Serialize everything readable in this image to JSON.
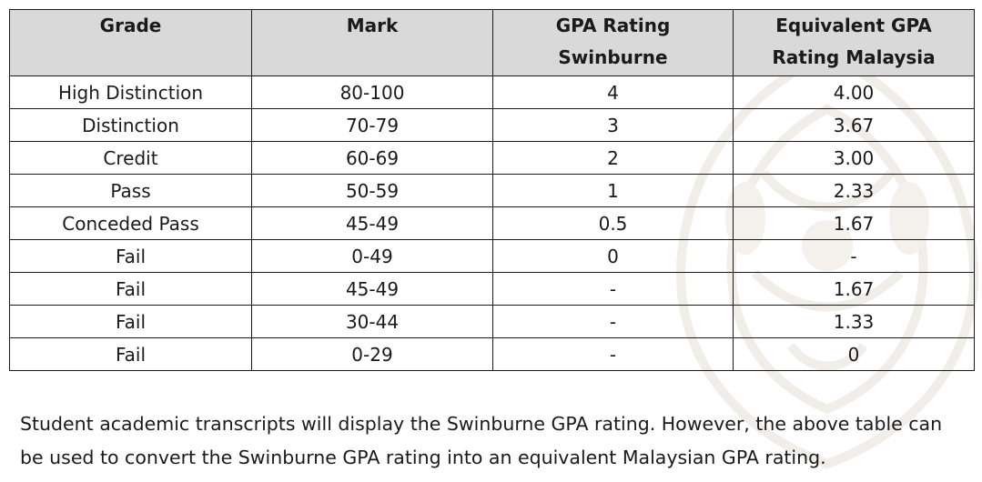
{
  "table": {
    "headers": [
      "Grade",
      "Mark",
      "GPA Rating\nSwinburne",
      "Equivalent GPA\nRating Malaysia"
    ],
    "rows": [
      [
        "High Distinction",
        "80-100",
        "4",
        "4.00"
      ],
      [
        "Distinction",
        "70-79",
        "3",
        "3.67"
      ],
      [
        "Credit",
        "60-69",
        "2",
        "3.00"
      ],
      [
        "Pass",
        "50-59",
        "1",
        "2.33"
      ],
      [
        "Conceded Pass",
        "45-49",
        "0.5",
        "1.67"
      ],
      [
        "Fail",
        "0-49",
        "0",
        "-"
      ],
      [
        "Fail",
        "45-49",
        "-",
        "1.67"
      ],
      [
        "Fail",
        "30-44",
        "-",
        "1.33"
      ],
      [
        "Fail",
        "0-29",
        "-",
        "0"
      ]
    ]
  },
  "note": "Student academic transcripts will display the Swinburne GPA rating. However, the above table can be used to convert the Swinburne GPA rating into an equivalent Malaysian GPA rating.",
  "colors": {
    "header_bg": "#d9d9d9",
    "border": "#1a1a1a",
    "watermark": "#f3f0ec"
  }
}
